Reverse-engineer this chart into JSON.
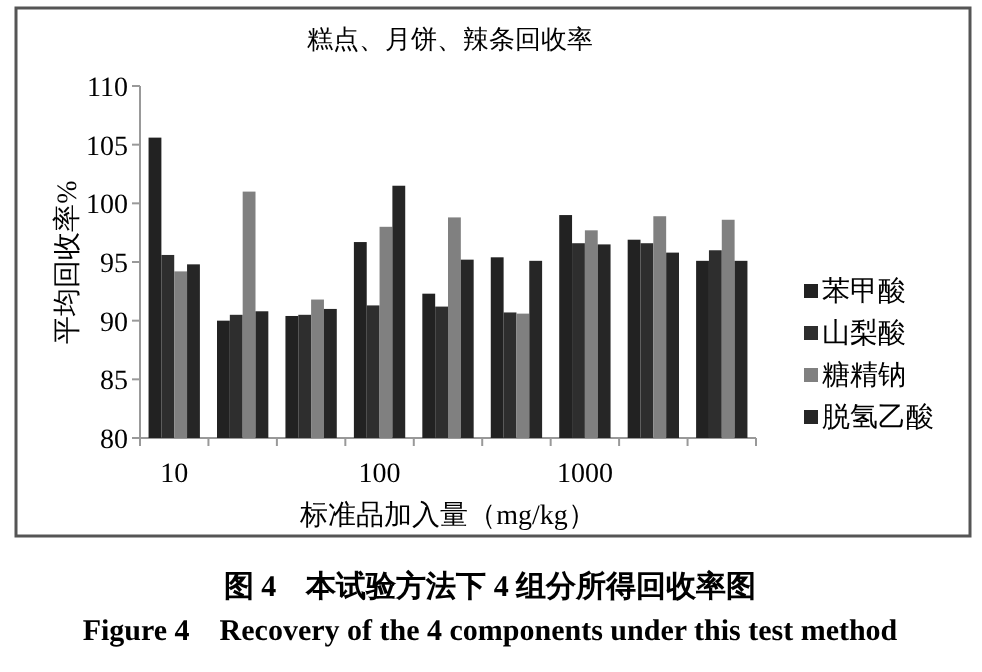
{
  "chart_data": {
    "type": "bar",
    "title": "糕点、月饼、辣条回收率",
    "xlabel": "标准品加入量（mg/kg）",
    "ylabel": "平均回收率%",
    "categories": [
      "10",
      null,
      null,
      "100",
      null,
      null,
      "1000",
      null,
      null
    ],
    "series": [
      {
        "name": "苯甲酸",
        "color": "#222222",
        "values": [
          105.6,
          90.0,
          90.4,
          96.7,
          92.3,
          95.4,
          99.0,
          96.9,
          95.1
        ]
      },
      {
        "name": "山梨酸",
        "color": "#2e2e2e",
        "values": [
          95.6,
          90.5,
          90.5,
          91.3,
          91.2,
          90.7,
          96.6,
          96.6,
          96.0
        ]
      },
      {
        "name": "糖精钠",
        "color": "#808080",
        "values": [
          94.2,
          101.0,
          91.8,
          98.0,
          98.8,
          90.6,
          97.7,
          98.9,
          98.6
        ]
      },
      {
        "name": "脱氢乙酸",
        "color": "#262626",
        "values": [
          94.8,
          90.8,
          91.0,
          101.5,
          95.2,
          95.1,
          96.5,
          95.8,
          95.1
        ]
      }
    ],
    "ylim": [
      80,
      110
    ],
    "yticks": [
      80,
      85,
      90,
      95,
      100,
      105,
      110
    ],
    "grid": false,
    "legend": "right",
    "annotations": [
      "图 4　本试验方法下 4 组分所得回收率图",
      "Figure 4　Recovery of the 4 components under this test method"
    ]
  }
}
